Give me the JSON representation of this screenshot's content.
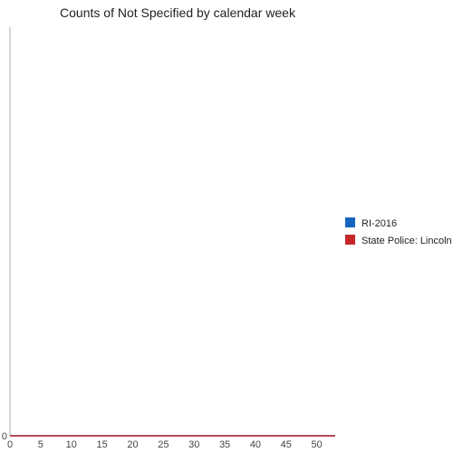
{
  "chart_data": {
    "type": "line",
    "title": "Counts of Not Specified by calendar week",
    "xlabel": "",
    "ylabel": "",
    "xlim": [
      0,
      53
    ],
    "ylim": [
      0,
      1
    ],
    "x_ticks": [
      0,
      5,
      10,
      15,
      20,
      25,
      30,
      35,
      40,
      45,
      50
    ],
    "y_ticks": [
      0
    ],
    "grid": false,
    "legend_position": "right",
    "x": [
      0,
      53
    ],
    "series": [
      {
        "name": "RI-2016",
        "color": "#1565c0",
        "values": [
          0,
          0
        ]
      },
      {
        "name": "State Police: Lincoln",
        "color": "#c62828",
        "values": [
          0,
          0
        ]
      }
    ]
  }
}
